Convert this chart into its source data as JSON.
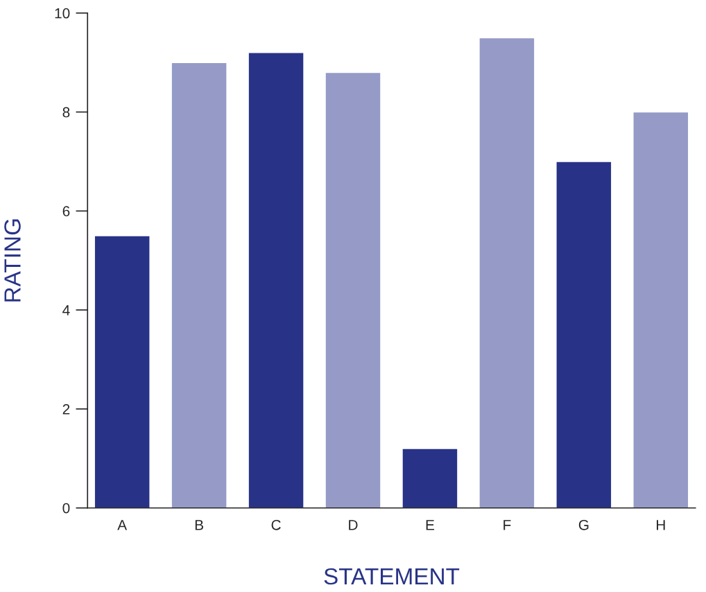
{
  "chart_data": {
    "type": "bar",
    "xlabel": "STATEMENT",
    "ylabel": "RATING",
    "categories": [
      "A",
      "B",
      "C",
      "D",
      "E",
      "F",
      "G",
      "H"
    ],
    "values": [
      5.5,
      9.0,
      9.2,
      8.8,
      1.2,
      9.5,
      7.0,
      8.0
    ],
    "colors": [
      "#283387",
      "#959bc6",
      "#283387",
      "#959bc6",
      "#283387",
      "#959bc6",
      "#283387",
      "#959bc6"
    ],
    "ylim": [
      0,
      10
    ],
    "yticks": [
      0,
      2,
      4,
      6,
      8,
      10
    ],
    "grid": false,
    "legend": false
  }
}
